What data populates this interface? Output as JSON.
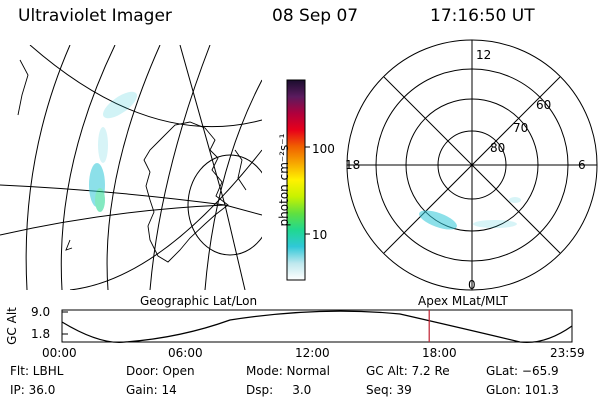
{
  "header": {
    "title": "Ultraviolet Imager",
    "date": "08 Sep 07",
    "time": "17:16:50 UT"
  },
  "colorbar": {
    "unit_label": "photon cm⁻²s⁻¹",
    "ticks": [
      "100",
      "10"
    ],
    "scale": "log",
    "colors": [
      "#1a0d2e",
      "#5a1b5e",
      "#b0003c",
      "#e8001a",
      "#f06000",
      "#f7a800",
      "#fff200",
      "#c8f200",
      "#60e040",
      "#20d890",
      "#30c8d8",
      "#bfe8ee",
      "#ffffff"
    ]
  },
  "polar_plot": {
    "mlt_labels": [
      "12",
      "18",
      "6",
      "0"
    ],
    "lat_labels": [
      "60",
      "70",
      "80"
    ]
  },
  "labels": {
    "left_map": "Geographic Lat/Lon",
    "right_map": "Apex MLat/MLT"
  },
  "altitude_plot": {
    "y_label": "GC Alt",
    "y_ticks": [
      "9.0",
      "1.8"
    ],
    "x_ticks": [
      "00:00",
      "06:00",
      "12:00",
      "18:00",
      "23:59"
    ],
    "current_time_fraction": 0.72,
    "marker_color": "#c02030"
  },
  "info": {
    "flt": "Flt: LBHL",
    "ip": "IP: 36.0",
    "door": "Door: Open",
    "gain": "Gain: 14",
    "mode": "Mode: Normal",
    "dsp": "Dsp:     3.0",
    "gc_alt": "GC Alt: 7.2 Re",
    "seq": "Seq: 39",
    "glat": "GLat: −65.9",
    "glon": "GLon: 101.3"
  },
  "aurora_color": "#30c8d8"
}
